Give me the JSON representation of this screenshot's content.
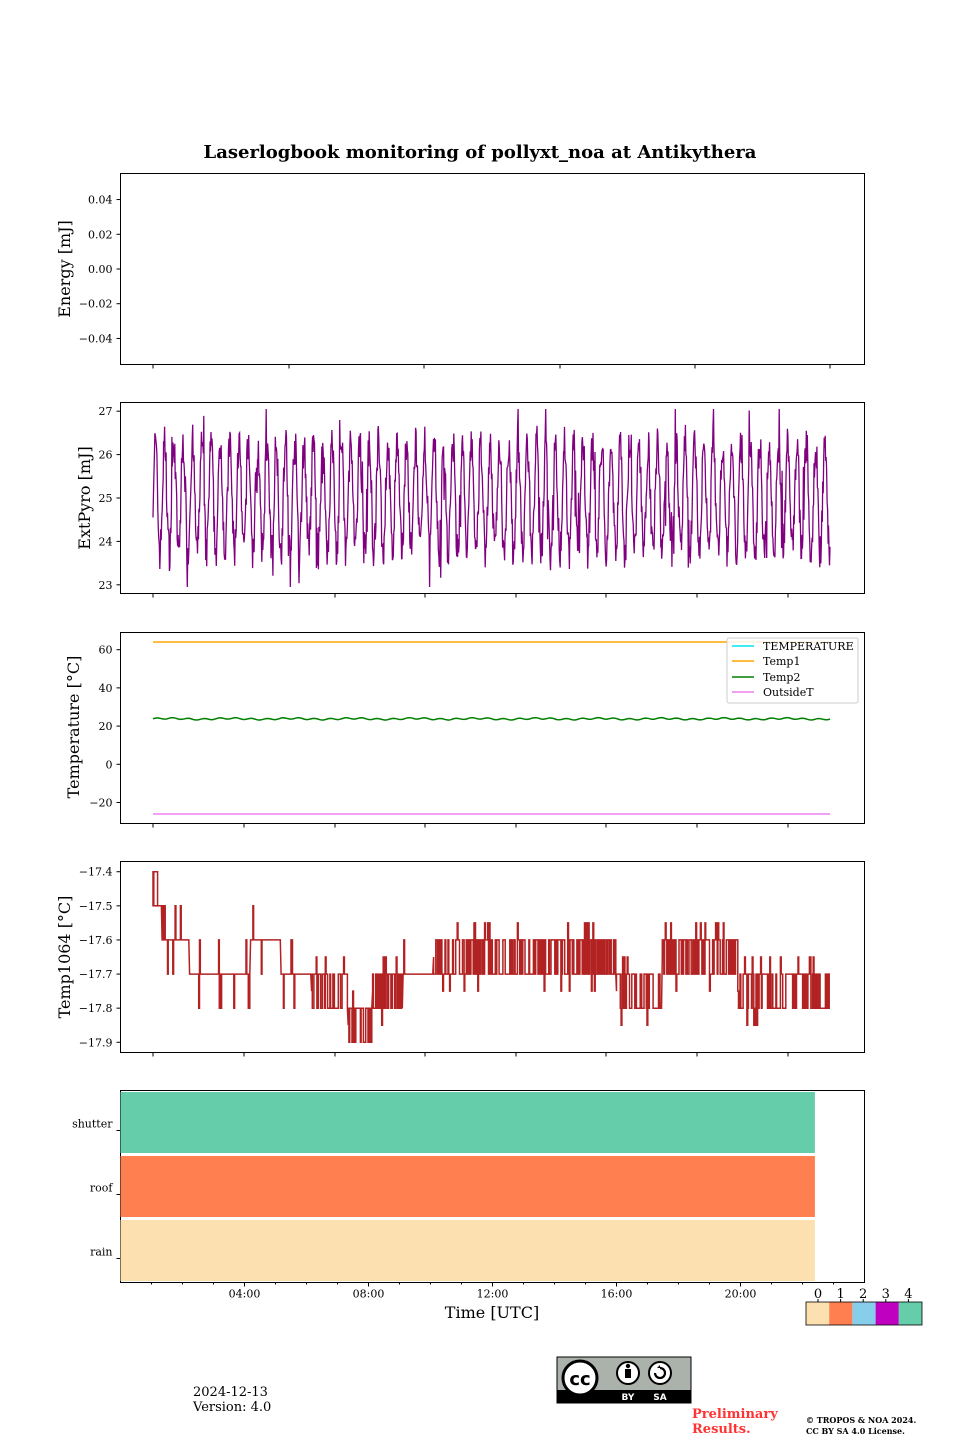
{
  "chart_data": [
    {
      "type": "line",
      "title": "Laserlogbook monitoring of pollyxt_noa at Antikythera",
      "ylabel": "Energy [mJ]",
      "ylim": [
        -0.055,
        0.055
      ],
      "yticks": [
        0.04,
        0.02,
        0.0,
        -0.02,
        -0.04
      ],
      "yticklabels": [
        "0.04",
        "0.02",
        "0.00",
        "−0.02",
        "−0.04"
      ],
      "series": []
    },
    {
      "type": "line",
      "ylabel": "ExtPyro [mJ]",
      "ylim": [
        22.8,
        27.2
      ],
      "yticks": [
        27,
        26,
        25,
        24,
        23
      ],
      "yticklabels": [
        "27",
        "26",
        "25",
        "24",
        "23"
      ],
      "series": [
        {
          "color": "#800080",
          "x_range_hours": [
            0.8,
            23.0
          ],
          "min": 22.95,
          "max": 27.05,
          "pattern": "oscillating ~25 ± 1.3, period ~0.3 h"
        }
      ]
    },
    {
      "type": "line",
      "ylabel": "Temperature [°C]",
      "ylim": [
        -31,
        69
      ],
      "yticks": [
        60,
        40,
        20,
        0,
        -20
      ],
      "yticklabels": [
        "60",
        "40",
        "20",
        "0",
        "−20"
      ],
      "legend": {
        "placement": "top-right",
        "entries": [
          "TEMPERATURE",
          "Temp1",
          "Temp2",
          "OutsideT"
        ]
      },
      "series": [
        {
          "name": "TEMPERATURE",
          "color": "#00e5ee",
          "values": []
        },
        {
          "name": "Temp1",
          "color": "#ffa500",
          "x": [
            0.8,
            23.0
          ],
          "values": [
            64,
            64
          ]
        },
        {
          "name": "Temp2",
          "color": "#008000",
          "x": [
            0.8,
            23.0
          ],
          "values": [
            23.8,
            23.8
          ]
        },
        {
          "name": "OutsideT",
          "color": "#ee82ee",
          "x": [
            0.8,
            23.0
          ],
          "values": [
            -26,
            -26
          ]
        }
      ]
    },
    {
      "type": "line",
      "ylabel": "Temp1064 [°C]",
      "ylim": [
        -17.93,
        -17.37
      ],
      "yticks": [
        -17.4,
        -17.5,
        -17.6,
        -17.7,
        -17.8,
        -17.9
      ],
      "yticklabels": [
        "−17.4",
        "−17.5",
        "−17.6",
        "−17.7",
        "−17.8",
        "−17.9"
      ],
      "series": [
        {
          "color": "#b22222",
          "x_range_hours": [
            0.8,
            23.0
          ],
          "min": -17.9,
          "max": -17.4,
          "pattern": "stepped, 0.1 °C resolution"
        }
      ],
      "segments": [
        [
          0.8,
          1.1,
          -17.5
        ],
        [
          1.1,
          2.0,
          -17.6
        ],
        [
          2.0,
          4.0,
          -17.7
        ],
        [
          4.0,
          5.0,
          -17.6
        ],
        [
          5.0,
          6.0,
          -17.7
        ],
        [
          6.0,
          7.2,
          -17.75
        ],
        [
          7.2,
          8.0,
          -17.85
        ],
        [
          8.0,
          9.0,
          -17.75
        ],
        [
          9.0,
          10.0,
          -17.7
        ],
        [
          10.0,
          16.0,
          -17.65
        ],
        [
          16.0,
          17.5,
          -17.75
        ],
        [
          17.5,
          20.0,
          -17.65
        ],
        [
          20.0,
          23.0,
          -17.75
        ]
      ]
    },
    {
      "type": "bar",
      "categories": [
        "rain",
        "roof",
        "shutter"
      ],
      "xlabel": "Time [UTC]",
      "xlim": [
        0,
        24
      ],
      "xticks": [
        4,
        8,
        12,
        16,
        20
      ],
      "xticklabels": [
        "04:00",
        "08:00",
        "12:00",
        "16:00",
        "20:00"
      ],
      "bars": [
        {
          "category": "rain",
          "x": [
            0,
            22.4
          ],
          "value": 0,
          "color": "#fde0b0"
        },
        {
          "category": "roof",
          "x": [
            0,
            22.4
          ],
          "value": 1,
          "color": "#ff7f50"
        },
        {
          "category": "shutter",
          "x": [
            0,
            22.4
          ],
          "value": 4,
          "color": "#66cdaa"
        }
      ],
      "colorbar": {
        "ticks": [
          "0",
          "1",
          "2",
          "3",
          "4"
        ],
        "colors": [
          "#fde0b0",
          "#ff7f50",
          "#87ceeb",
          "#c000c0",
          "#66cdaa"
        ]
      }
    }
  ],
  "footer": {
    "date": "2024-12-13",
    "version": "Version: 4.0",
    "preliminary_1": "Preliminary",
    "preliminary_2": "Results.",
    "copyright_1": "© TROPOS & NOA 2024.",
    "copyright_2": "CC BY SA 4.0 License.",
    "license_by": "BY",
    "license_sa": "SA",
    "license_cc": "cc"
  }
}
